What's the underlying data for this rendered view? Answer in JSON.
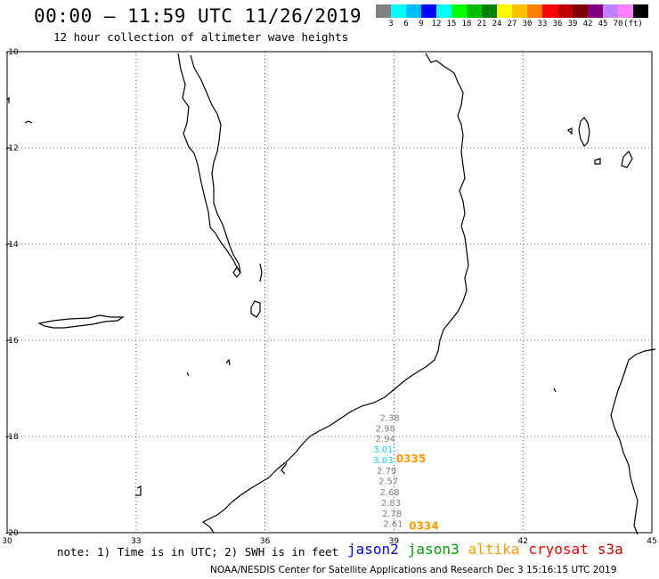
{
  "title": "00:00 – 11:59 UTC 11/26/2019",
  "subtitle": "12 hour collection of altimeter wave heights",
  "colorbar": {
    "colors": [
      "#808080",
      "#00ffff",
      "#00bfff",
      "#0000ff",
      "#00ffff",
      "#00ff00",
      "#00c000",
      "#008000",
      "#ffff00",
      "#ffc000",
      "#ff8000",
      "#ff0000",
      "#c00000",
      "#800000",
      "#800080",
      "#c080ff",
      "#ff80ff",
      "#000000"
    ],
    "labels": [
      "3",
      "6",
      "9",
      "12",
      "15",
      "18",
      "21",
      "24",
      "27",
      "30",
      "33",
      "36",
      "39",
      "42",
      "45",
      "70",
      "(ft)"
    ]
  },
  "map": {
    "lon_range": [
      30,
      45
    ],
    "lat_range": [
      -20,
      -10
    ],
    "lon_ticks": [
      "30",
      "33",
      "36",
      "39",
      "42",
      "45"
    ],
    "lat_ticks": [
      "-10",
      "-12",
      "-14",
      "-16",
      "-18",
      "-20"
    ]
  },
  "observations": [
    {
      "lon": 38.9,
      "lat": -17.6,
      "swh": "2.38",
      "color": "#808080"
    },
    {
      "lon": 38.8,
      "lat": -17.82,
      "swh": "2.98",
      "color": "#808080"
    },
    {
      "lon": 38.8,
      "lat": -18.04,
      "swh": "2.94",
      "color": "#808080"
    },
    {
      "lon": 38.75,
      "lat": -18.26,
      "swh": "3.01",
      "color": "#00d8ff"
    },
    {
      "lon": 38.75,
      "lat": -18.48,
      "swh": "3.03",
      "color": "#00d8ff"
    },
    {
      "lon": 38.83,
      "lat": -18.7,
      "swh": "2.79",
      "color": "#808080"
    },
    {
      "lon": 38.87,
      "lat": -18.92,
      "swh": "2.57",
      "color": "#808080"
    },
    {
      "lon": 38.9,
      "lat": -19.15,
      "swh": "2.68",
      "color": "#808080"
    },
    {
      "lon": 38.93,
      "lat": -19.37,
      "swh": "2.83",
      "color": "#808080"
    },
    {
      "lon": 38.95,
      "lat": -19.59,
      "swh": "2.78",
      "color": "#808080"
    },
    {
      "lon": 38.98,
      "lat": -19.81,
      "swh": "2.61",
      "color": "#808080"
    }
  ],
  "passes": [
    {
      "lon": 39.05,
      "lat": -18.46,
      "id": "0335",
      "color": "#ff9900"
    },
    {
      "lon": 39.35,
      "lat": -19.86,
      "id": "0334",
      "color": "#ff9900"
    }
  ],
  "note": "note: 1) Time is in UTC; 2) SWH is in feet",
  "legend": [
    {
      "name": "jason2",
      "color": "#0000ff"
    },
    {
      "name": "jason3",
      "color": "#00a000"
    },
    {
      "name": "altika",
      "color": "#ff9900"
    },
    {
      "name": "cryosat",
      "color": "#ff0000"
    },
    {
      "name": "s3a",
      "color": "#c00000"
    }
  ],
  "credit": "NOAA/NESDIS Center for Satellite Applications and Research   Dec  3 15:16:15 UTC 2019"
}
